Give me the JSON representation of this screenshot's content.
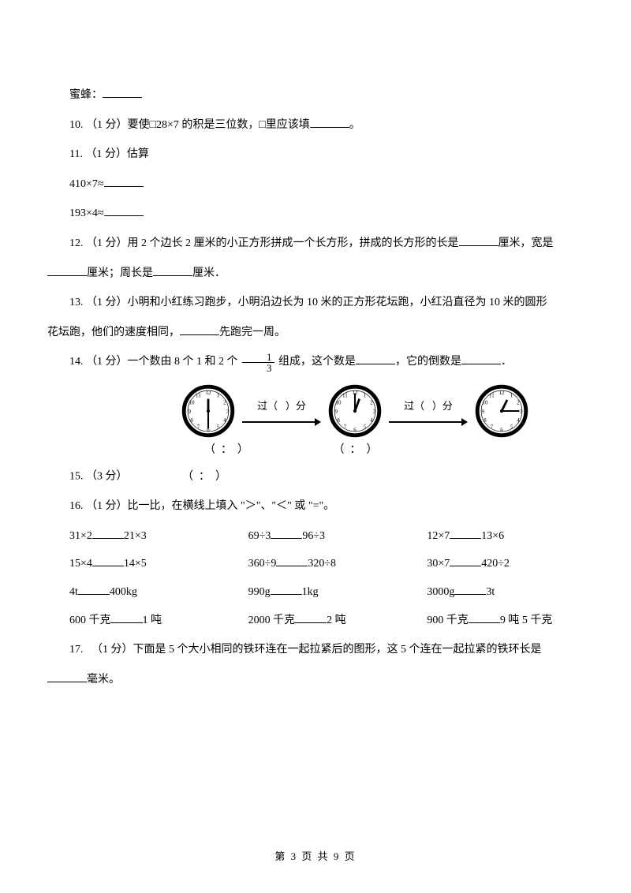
{
  "q9b": {
    "label": "蜜蜂："
  },
  "q10": {
    "text": "10. （1 分）要使□28×7 的积是三位数，□里应该填",
    "suffix": "。"
  },
  "q11": {
    "header": "11. （1 分）估算",
    "line1": "410×7≈",
    "line2": "193×4≈"
  },
  "q12": {
    "pre": "12. （1 分）用 2 个边长 2 厘米的小正方形拼成一个长方形，拼成的长方形的长是",
    "mid1": "厘米，宽是",
    "mid2": "厘米；周长是",
    "suffix": "厘米．"
  },
  "q13": {
    "pre": "13. （1 分）小明和小红练习跑步，小明沿边长为 10 米的正方形花坛跑，小红沿直径为 10 米的圆形",
    "line2a": "花坛跑，他们的速度相同，",
    "line2b": "先跑完一周。"
  },
  "q14": {
    "pre": "14. （1 分）一个数由 8 个 1 和 2 个 ",
    "frac_num": "1",
    "frac_den": "3",
    "mid": " 组成，这个数是",
    "mid2": "，它的倒数是",
    "suffix": "．"
  },
  "q15": {
    "prefix": "15. （3 分）",
    "pass_l": "过（",
    "pass_r": "）分",
    "time_l": "（",
    "time_m": "：",
    "time_r": "）"
  },
  "q16": {
    "header": "16. （1 分）比一比，在横线上填入 \"＞\"、\"＜\" 或 \"=\"。",
    "rows": [
      [
        "31×2",
        "21×3",
        "69÷3",
        "96÷3",
        "12×7",
        "13×6"
      ],
      [
        "15×4",
        "14×5",
        "360÷9",
        "320÷8",
        "30×7",
        "420÷2"
      ],
      [
        "4t",
        "400kg",
        "990g",
        "1kg",
        "3000g",
        "3t"
      ],
      [
        "600 千克",
        "1 吨",
        "2000 千克",
        "2 吨",
        "900 千克",
        "9 吨 5 千克"
      ]
    ]
  },
  "q17": {
    "pre": "17. 　（1 分）下面是 5 个大小相同的铁环连在一起拉紧后的图形，这 5 个连在一起拉紧的铁环长是",
    "suffix": "毫米。"
  },
  "footer": "第 3 页 共 9 页"
}
